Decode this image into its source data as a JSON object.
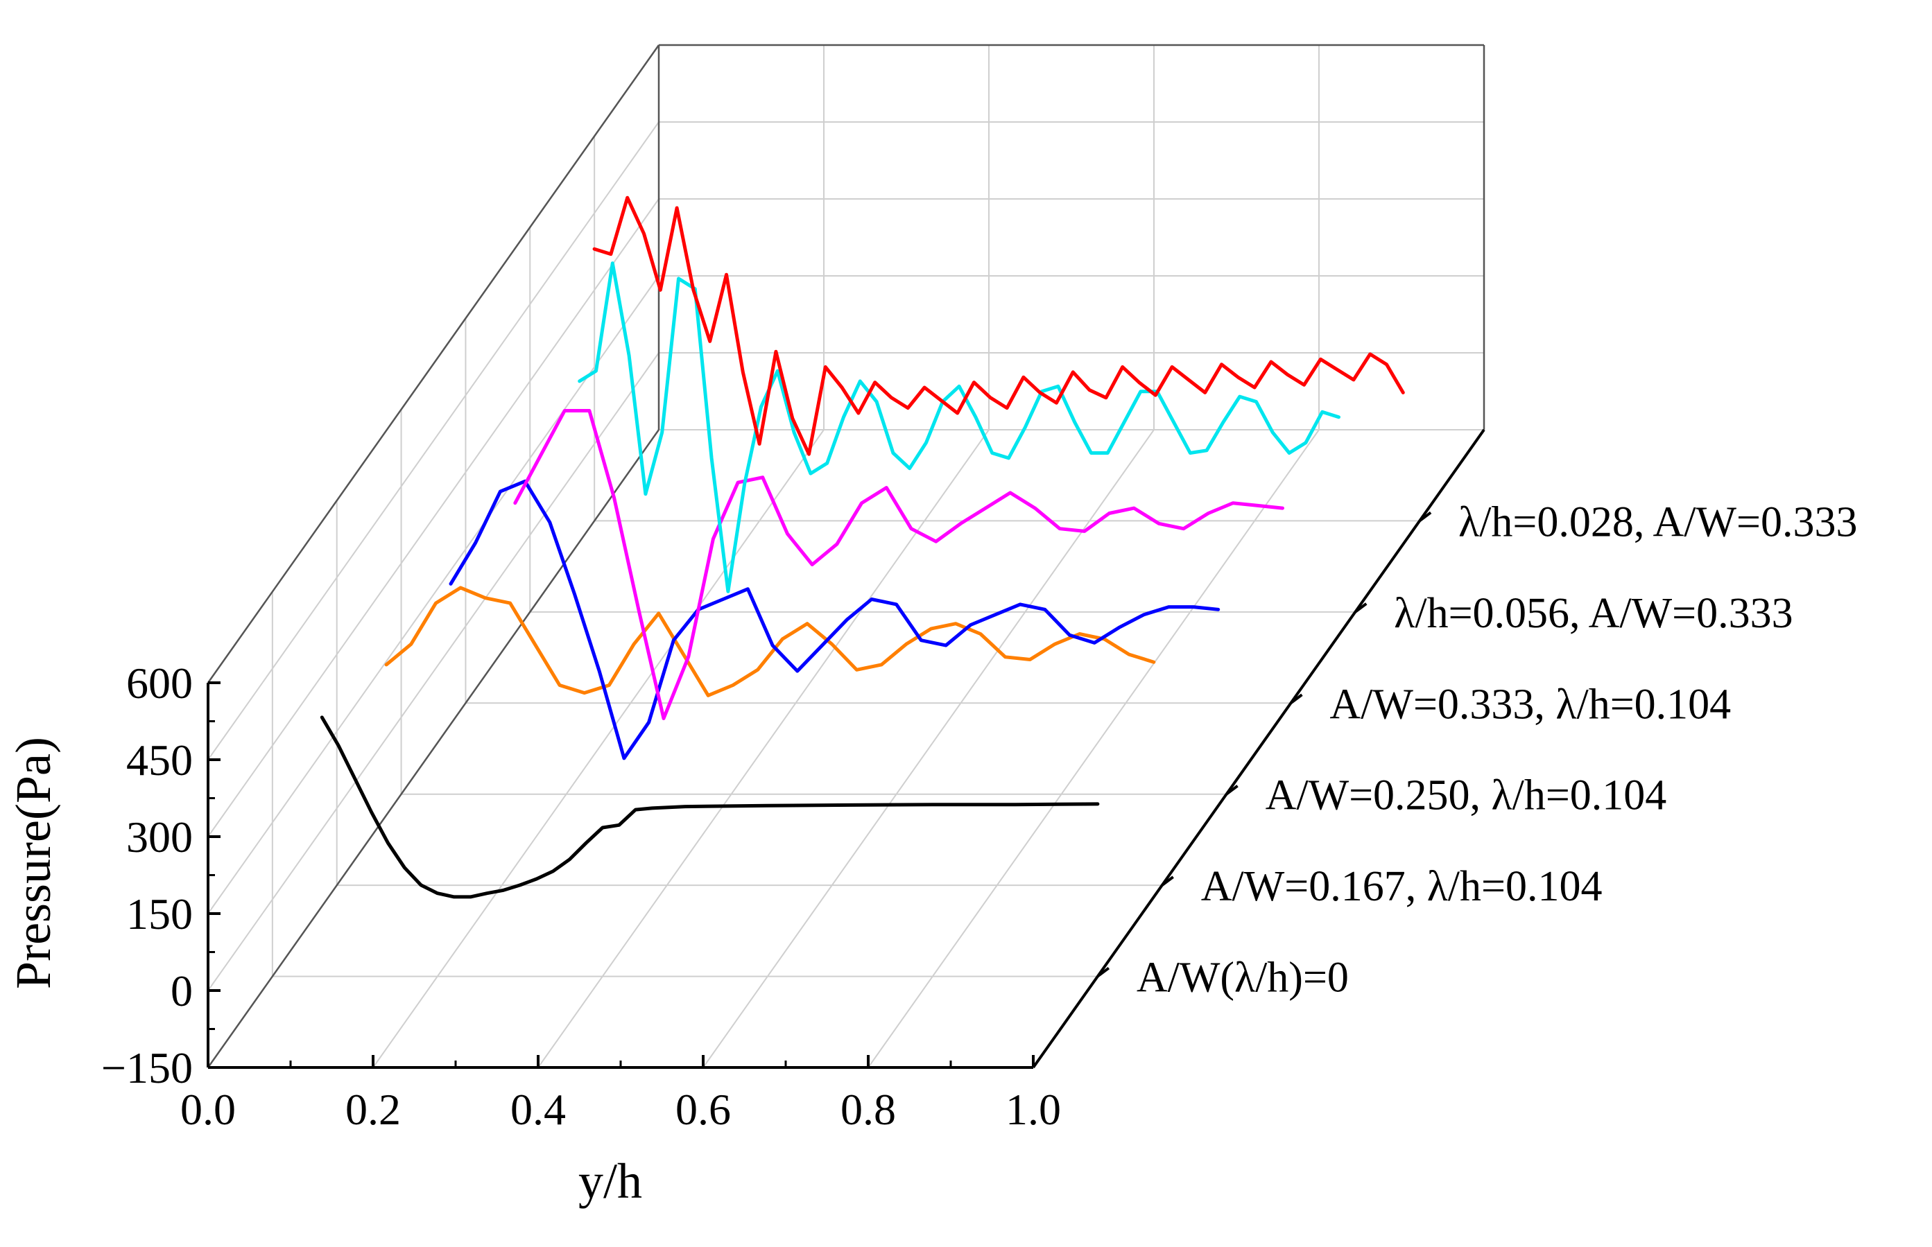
{
  "chart_data": {
    "type": "line",
    "projection": "3d-waterfall",
    "xlabel": "y/h",
    "ylabel": "Pressure(Pa)",
    "xlim": [
      0.0,
      1.0
    ],
    "ylim": [
      -150,
      600
    ],
    "x_ticks": [
      "0.0",
      "0.2",
      "0.4",
      "0.6",
      "0.8",
      "1.0"
    ],
    "y_ticks": [
      "−150",
      "0",
      "150",
      "300",
      "450",
      "600"
    ],
    "grid": true,
    "series": [
      {
        "name": "A/W(λ/h)=0",
        "color": "#000000",
        "x": [
          0.06,
          0.08,
          0.1,
          0.12,
          0.14,
          0.16,
          0.18,
          0.2,
          0.22,
          0.24,
          0.26,
          0.28,
          0.3,
          0.32,
          0.34,
          0.36,
          0.38,
          0.4,
          0.42,
          0.44,
          0.46,
          0.5,
          0.6,
          0.7,
          0.8,
          0.9,
          1.0
        ],
        "values": [
          355,
          300,
          235,
          170,
          110,
          62,
          28,
          12,
          5,
          5,
          12,
          18,
          28,
          40,
          55,
          78,
          110,
          140,
          145,
          175,
          178,
          181,
          183,
          184,
          185,
          185,
          186
        ]
      },
      {
        "name": "A/W=0.167, λ/h=0.104",
        "color": "#ff7f00",
        "x": [
          0.06,
          0.09,
          0.12,
          0.15,
          0.18,
          0.21,
          0.24,
          0.27,
          0.3,
          0.33,
          0.36,
          0.39,
          0.42,
          0.45,
          0.48,
          0.51,
          0.54,
          0.57,
          0.6,
          0.63,
          0.66,
          0.69,
          0.72,
          0.75,
          0.78,
          0.81,
          0.84,
          0.87,
          0.9,
          0.93,
          0.96,
          0.99
        ],
        "values": [
          280,
          320,
          400,
          430,
          410,
          400,
          320,
          240,
          225,
          240,
          320,
          380,
          300,
          220,
          240,
          270,
          330,
          360,
          320,
          270,
          280,
          320,
          350,
          360,
          340,
          295,
          290,
          320,
          340,
          330,
          300,
          285
        ]
      },
      {
        "name": "A/W=0.250, λ/h=0.104",
        "color": "#0000ff",
        "x": [
          0.06,
          0.09,
          0.12,
          0.15,
          0.18,
          0.21,
          0.24,
          0.27,
          0.3,
          0.33,
          0.36,
          0.39,
          0.42,
          0.45,
          0.48,
          0.51,
          0.54,
          0.57,
          0.6,
          0.63,
          0.66,
          0.69,
          0.72,
          0.75,
          0.78,
          0.81,
          0.84,
          0.87,
          0.9,
          0.93,
          0.96,
          0.99
        ],
        "values": [
          260,
          340,
          440,
          460,
          380,
          240,
          90,
          -80,
          -10,
          150,
          210,
          230,
          250,
          140,
          90,
          140,
          190,
          230,
          220,
          150,
          140,
          180,
          200,
          220,
          210,
          160,
          145,
          175,
          200,
          215,
          215,
          210
        ]
      },
      {
        "name": "A/W=0.333, λ/h=0.104",
        "color": "#ff00ff",
        "x": [
          0.06,
          0.09,
          0.12,
          0.15,
          0.18,
          0.21,
          0.24,
          0.27,
          0.3,
          0.33,
          0.36,
          0.39,
          0.42,
          0.45,
          0.48,
          0.51,
          0.54,
          0.57,
          0.6,
          0.63,
          0.66,
          0.69,
          0.72,
          0.75,
          0.78,
          0.81,
          0.84,
          0.87,
          0.9,
          0.93,
          0.96,
          0.99
        ],
        "values": [
          240,
          330,
          420,
          420,
          250,
          30,
          -180,
          -60,
          170,
          280,
          290,
          180,
          120,
          160,
          240,
          270,
          190,
          165,
          200,
          230,
          260,
          230,
          190,
          185,
          220,
          230,
          200,
          190,
          220,
          240,
          235,
          230
        ]
      },
      {
        "name": "λ/h=0.056, A/W=0.333",
        "color": "#00e5ee",
        "x": [
          0.06,
          0.08,
          0.1,
          0.12,
          0.14,
          0.16,
          0.18,
          0.2,
          0.22,
          0.24,
          0.26,
          0.28,
          0.3,
          0.32,
          0.34,
          0.36,
          0.38,
          0.4,
          0.42,
          0.44,
          0.46,
          0.48,
          0.5,
          0.52,
          0.54,
          0.56,
          0.58,
          0.6,
          0.62,
          0.64,
          0.66,
          0.68,
          0.7,
          0.72,
          0.74,
          0.76,
          0.78,
          0.8,
          0.82,
          0.84,
          0.86,
          0.88,
          0.9,
          0.92,
          0.94,
          0.96,
          0.98
        ],
        "values": [
          300,
          320,
          530,
          350,
          80,
          200,
          500,
          480,
          150,
          -110,
          100,
          250,
          320,
          200,
          120,
          140,
          230,
          300,
          260,
          160,
          130,
          180,
          260,
          290,
          230,
          160,
          150,
          210,
          280,
          290,
          220,
          160,
          160,
          220,
          280,
          280,
          220,
          160,
          165,
          220,
          270,
          260,
          200,
          160,
          180,
          240,
          230
        ]
      },
      {
        "name": "λ/h=0.028, A/W=0.333",
        "color": "#ff0000",
        "x": [
          0.0,
          0.02,
          0.04,
          0.06,
          0.08,
          0.1,
          0.12,
          0.14,
          0.16,
          0.18,
          0.2,
          0.22,
          0.24,
          0.26,
          0.28,
          0.3,
          0.32,
          0.34,
          0.36,
          0.38,
          0.4,
          0.42,
          0.44,
          0.46,
          0.48,
          0.5,
          0.52,
          0.54,
          0.56,
          0.58,
          0.6,
          0.62,
          0.64,
          0.66,
          0.68,
          0.7,
          0.72,
          0.74,
          0.76,
          0.78,
          0.8,
          0.82,
          0.84,
          0.86,
          0.88,
          0.9,
          0.92,
          0.94,
          0.96,
          0.98
        ],
        "values": [
          380,
          370,
          480,
          410,
          300,
          460,
          300,
          200,
          330,
          140,
          0,
          180,
          50,
          -20,
          150,
          110,
          60,
          120,
          90,
          70,
          110,
          85,
          60,
          120,
          90,
          70,
          130,
          100,
          80,
          140,
          105,
          90,
          150,
          120,
          95,
          150,
          125,
          100,
          155,
          130,
          110,
          160,
          135,
          115,
          165,
          145,
          125,
          175,
          155,
          100
        ]
      }
    ]
  }
}
